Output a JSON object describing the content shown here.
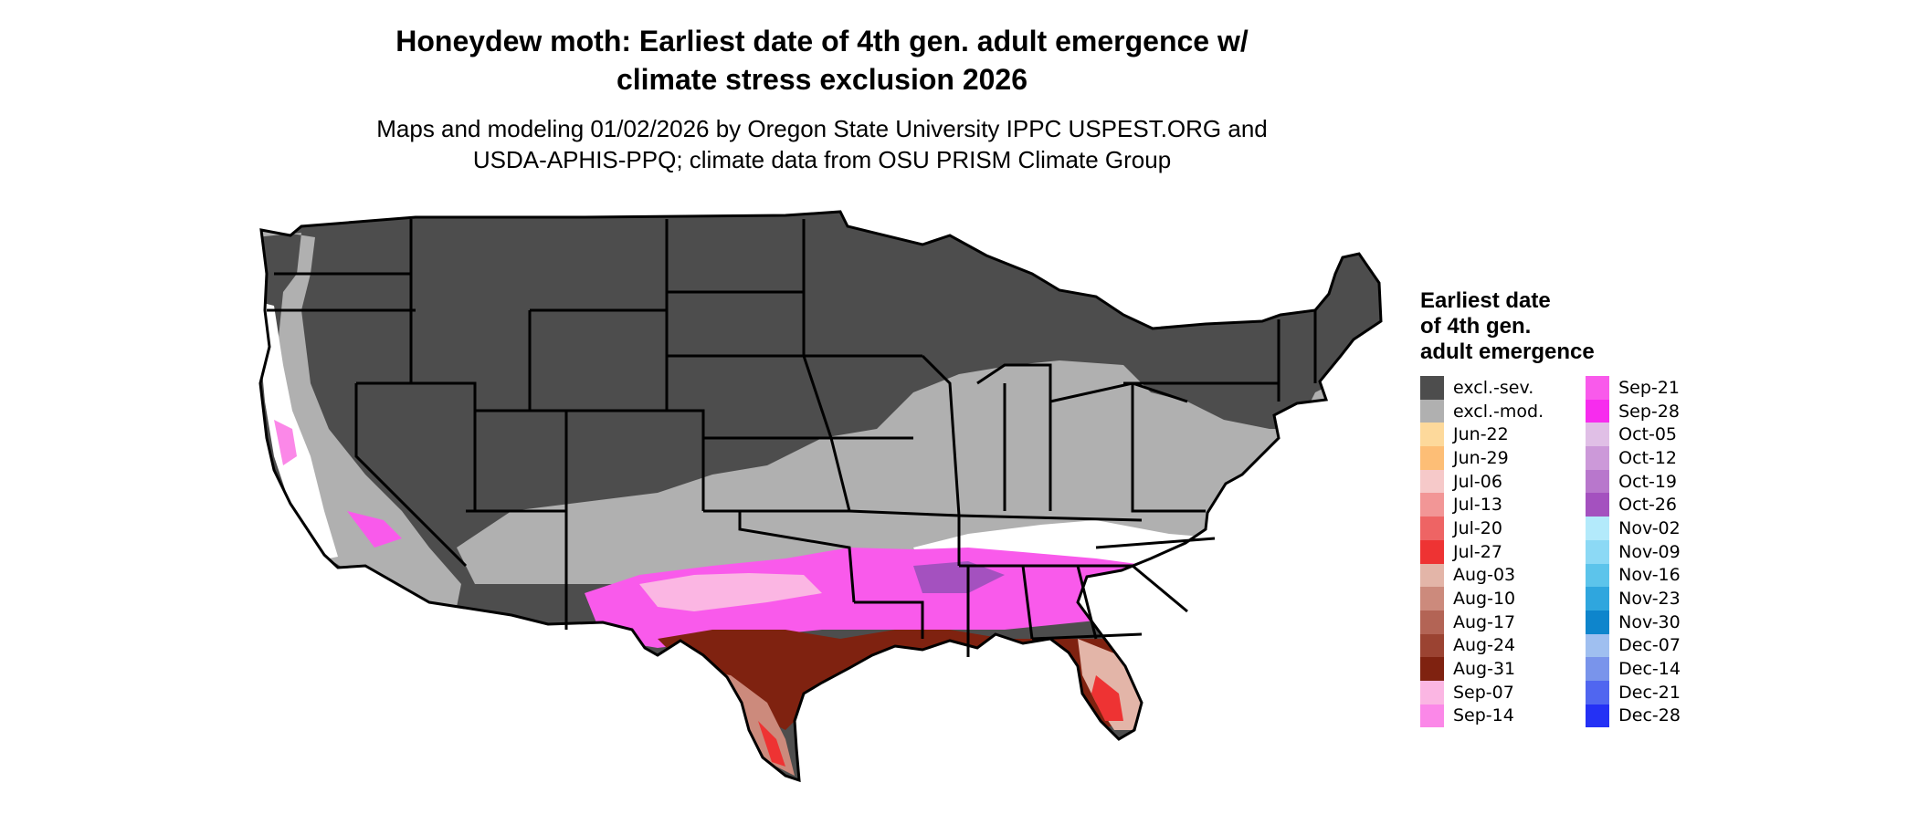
{
  "title": {
    "line1": "Honeydew moth: Earliest date of 4th gen. adult emergence w/",
    "line2": "climate stress exclusion 2026"
  },
  "subtitle": {
    "line1": "Maps and modeling 01/02/2026 by Oregon State University IPPC USPEST.ORG and",
    "line2": "USDA-APHIS-PPQ; climate data from OSU PRISM Climate Group"
  },
  "legend": {
    "title_line1": "Earliest date",
    "title_line2": "of 4th gen.",
    "title_line3": "adult emergence",
    "items": [
      {
        "label": "excl.-sev.",
        "color": "#4d4d4d"
      },
      {
        "label": "excl.-mod.",
        "color": "#b0b0b0"
      },
      {
        "label": "Jun-22",
        "color": "#fdd99b"
      },
      {
        "label": "Jun-29",
        "color": "#fdbe76"
      },
      {
        "label": "Jul-06",
        "color": "#f6c9c9"
      },
      {
        "label": "Jul-13",
        "color": "#f29696"
      },
      {
        "label": "Jul-20",
        "color": "#ee6464"
      },
      {
        "label": "Jul-27",
        "color": "#ee3333"
      },
      {
        "label": "Aug-03",
        "color": "#e3b5a8"
      },
      {
        "label": "Aug-10",
        "color": "#cc8a7c"
      },
      {
        "label": "Aug-17",
        "color": "#b36455"
      },
      {
        "label": "Aug-24",
        "color": "#9b4332"
      },
      {
        "label": "Aug-31",
        "color": "#7f2210"
      },
      {
        "label": "Sep-07",
        "color": "#fbb6e3"
      },
      {
        "label": "Sep-14",
        "color": "#fb88e8"
      },
      {
        "label": "Sep-21",
        "color": "#f95aeb"
      },
      {
        "label": "Sep-28",
        "color": "#f72cee"
      },
      {
        "label": "Oct-05",
        "color": "#e0bfe6"
      },
      {
        "label": "Oct-12",
        "color": "#cc99d9"
      },
      {
        "label": "Oct-19",
        "color": "#b877cc"
      },
      {
        "label": "Oct-26",
        "color": "#a451bf"
      },
      {
        "label": "Nov-02",
        "color": "#b3eafb"
      },
      {
        "label": "Nov-09",
        "color": "#8cd9f5"
      },
      {
        "label": "Nov-16",
        "color": "#5cc4eb"
      },
      {
        "label": "Nov-23",
        "color": "#2fa6de"
      },
      {
        "label": "Nov-30",
        "color": "#0e85cc"
      },
      {
        "label": "Dec-07",
        "color": "#9fbff0"
      },
      {
        "label": "Dec-14",
        "color": "#7994eb"
      },
      {
        "label": "Dec-21",
        "color": "#5066f0"
      },
      {
        "label": "Dec-28",
        "color": "#2431f5"
      }
    ]
  },
  "map": {
    "colors": {
      "exclusion_severe": "#4d4d4d",
      "exclusion_moderate": "#b0b0b0",
      "no_data": "#ffffff",
      "border": "#000000"
    }
  }
}
